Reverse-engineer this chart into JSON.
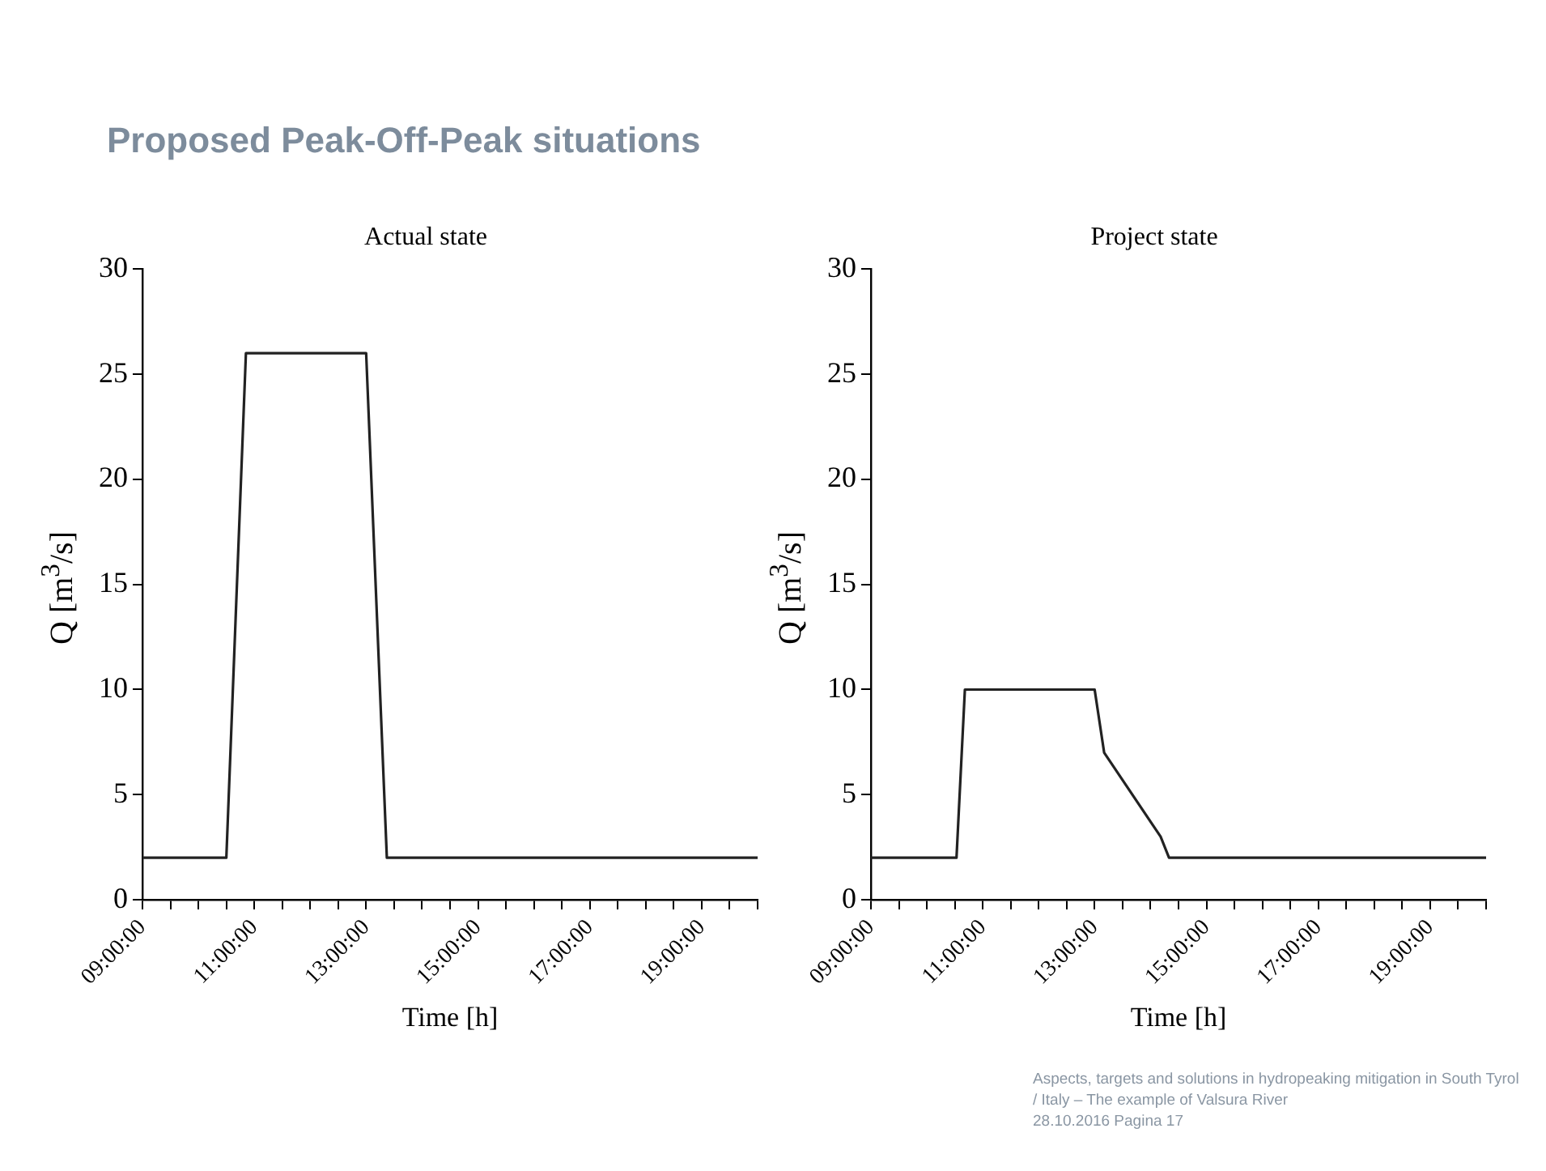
{
  "chart_data": [
    {
      "type": "line",
      "title": "Actual state",
      "xlabel": "Time [h]",
      "ylabel": "Q [m$^{3}$/s]",
      "annotations": [
        "Proposed Peak-Off-Peak situations"
      ],
      "series": [
        {
          "color": "#222222",
          "x": [
            9,
            10.5,
            10.85,
            13,
            13.37,
            20
          ],
          "values": [
            2,
            2,
            26,
            26,
            2,
            2
          ]
        }
      ],
      "xlim": [
        9,
        20
      ],
      "xticks": [
        {
          "value": 9,
          "label": "09:00:00"
        },
        {
          "value": 9.5,
          "label": null
        },
        {
          "value": 10,
          "label": null
        },
        {
          "value": 10.5,
          "label": null
        },
        {
          "value": 11,
          "label": "11:00:00"
        },
        {
          "value": 11.5,
          "label": null
        },
        {
          "value": 12,
          "label": null
        },
        {
          "value": 12.5,
          "label": null
        },
        {
          "value": 13,
          "label": "13:00:00"
        },
        {
          "value": 13.5,
          "label": null
        },
        {
          "value": 14,
          "label": null
        },
        {
          "value": 14.5,
          "label": null
        },
        {
          "value": 15,
          "label": "15:00:00"
        },
        {
          "value": 15.5,
          "label": null
        },
        {
          "value": 16,
          "label": null
        },
        {
          "value": 16.5,
          "label": null
        },
        {
          "value": 17,
          "label": "17:00:00"
        },
        {
          "value": 17.5,
          "label": null
        },
        {
          "value": 18,
          "label": null
        },
        {
          "value": 18.5,
          "label": null
        },
        {
          "value": 19,
          "label": "19:00:00"
        },
        {
          "value": 19.5,
          "label": null
        },
        {
          "value": 20,
          "label": null
        }
      ],
      "ylim": [
        0,
        30
      ],
      "yticks": [
        0,
        5,
        10,
        15,
        20,
        25,
        30
      ],
      "grid": false,
      "legend": false
    },
    {
      "type": "line",
      "title": "Project state",
      "xlabel": "Time [h]",
      "ylabel": "Q [m$^{3}$/s]",
      "annotations": [
        "Aspects, targets and solutions in hydropeaking mitigation in South Tyrol / Italy – The example of Valsura River",
        "28.10.2016  Pagina 17"
      ],
      "series": [
        {
          "color": "#222222",
          "x": [
            9,
            10.53,
            10.68,
            13,
            13.17,
            14.18,
            14.33,
            20
          ],
          "values": [
            2,
            2,
            10,
            10,
            7,
            3,
            2,
            2
          ]
        }
      ],
      "xlim": [
        9,
        20
      ],
      "xticks": [
        {
          "value": 9,
          "label": "09:00:00"
        },
        {
          "value": 9.5,
          "label": null
        },
        {
          "value": 10,
          "label": null
        },
        {
          "value": 10.5,
          "label": null
        },
        {
          "value": 11,
          "label": "11:00:00"
        },
        {
          "value": 11.5,
          "label": null
        },
        {
          "value": 12,
          "label": null
        },
        {
          "value": 12.5,
          "label": null
        },
        {
          "value": 13,
          "label": "13:00:00"
        },
        {
          "value": 13.5,
          "label": null
        },
        {
          "value": 14,
          "label": null
        },
        {
          "value": 14.5,
          "label": null
        },
        {
          "value": 15,
          "label": "15:00:00"
        },
        {
          "value": 15.5,
          "label": null
        },
        {
          "value": 16,
          "label": null
        },
        {
          "value": 16.5,
          "label": null
        },
        {
          "value": 17,
          "label": "17:00:00"
        },
        {
          "value": 17.5,
          "label": null
        },
        {
          "value": 18,
          "label": null
        },
        {
          "value": 18.5,
          "label": null
        },
        {
          "value": 19,
          "label": "19:00:00"
        },
        {
          "value": 19.5,
          "label": null
        },
        {
          "value": 20,
          "label": null
        }
      ],
      "ylim": [
        0,
        30
      ],
      "yticks": [
        0,
        5,
        10,
        15,
        20,
        25,
        30
      ],
      "grid": false,
      "legend": false
    }
  ]
}
